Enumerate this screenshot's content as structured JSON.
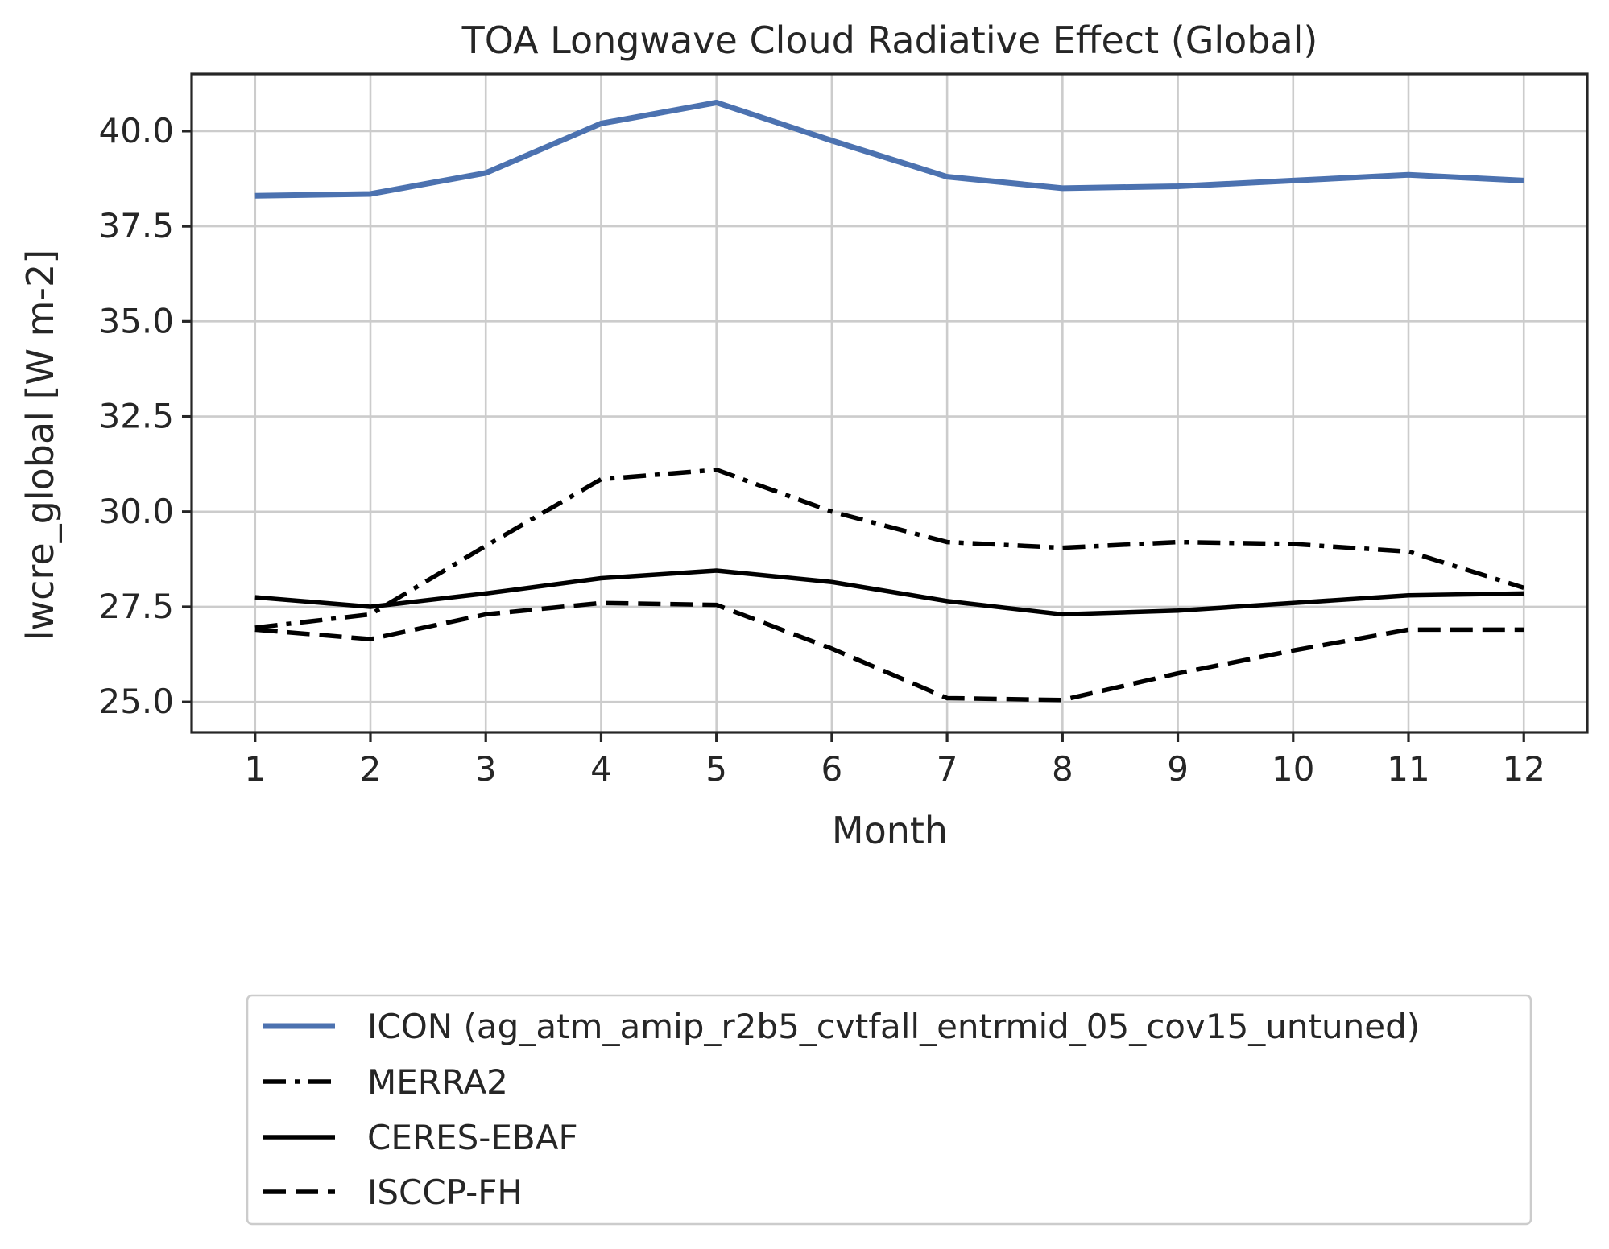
{
  "chart_data": {
    "type": "line",
    "title": "TOA Longwave Cloud Radiative Effect (Global)",
    "xlabel": "Month",
    "ylabel": "lwcre_global [W m-2]",
    "x": [
      1,
      2,
      3,
      4,
      5,
      6,
      7,
      8,
      9,
      10,
      11,
      12
    ],
    "x_ticks": [
      "1",
      "2",
      "3",
      "4",
      "5",
      "6",
      "7",
      "8",
      "9",
      "10",
      "11",
      "12"
    ],
    "y_ticks": [
      "25.0",
      "27.5",
      "30.0",
      "32.5",
      "35.0",
      "37.5",
      "40.0"
    ],
    "xlim": [
      0.45,
      12.55
    ],
    "ylim": [
      24.2,
      41.5
    ],
    "grid": true,
    "legend_position": "below plot",
    "series": [
      {
        "name": "ICON (ag_atm_amip_r2b5_cvtfall_entrmid_05_cov15_untuned)",
        "color": "#4c72b0",
        "style": "solid",
        "values": [
          38.3,
          38.35,
          38.9,
          40.2,
          40.75,
          39.75,
          38.8,
          38.5,
          38.55,
          38.7,
          38.85,
          38.7
        ]
      },
      {
        "name": "MERRA2",
        "color": "#000000",
        "style": "dashdot",
        "values": [
          26.95,
          27.3,
          29.1,
          30.85,
          31.1,
          30.0,
          29.2,
          29.05,
          29.2,
          29.15,
          28.95,
          28.0
        ]
      },
      {
        "name": "CERES-EBAF",
        "color": "#000000",
        "style": "solid",
        "values": [
          27.75,
          27.5,
          27.85,
          28.25,
          28.45,
          28.15,
          27.65,
          27.3,
          27.4,
          27.6,
          27.8,
          27.85
        ]
      },
      {
        "name": "ISCCP-FH",
        "color": "#000000",
        "style": "dashed",
        "values": [
          26.9,
          26.65,
          27.3,
          27.6,
          27.55,
          26.4,
          25.1,
          25.05,
          25.75,
          26.35,
          26.9,
          26.9
        ]
      }
    ]
  }
}
